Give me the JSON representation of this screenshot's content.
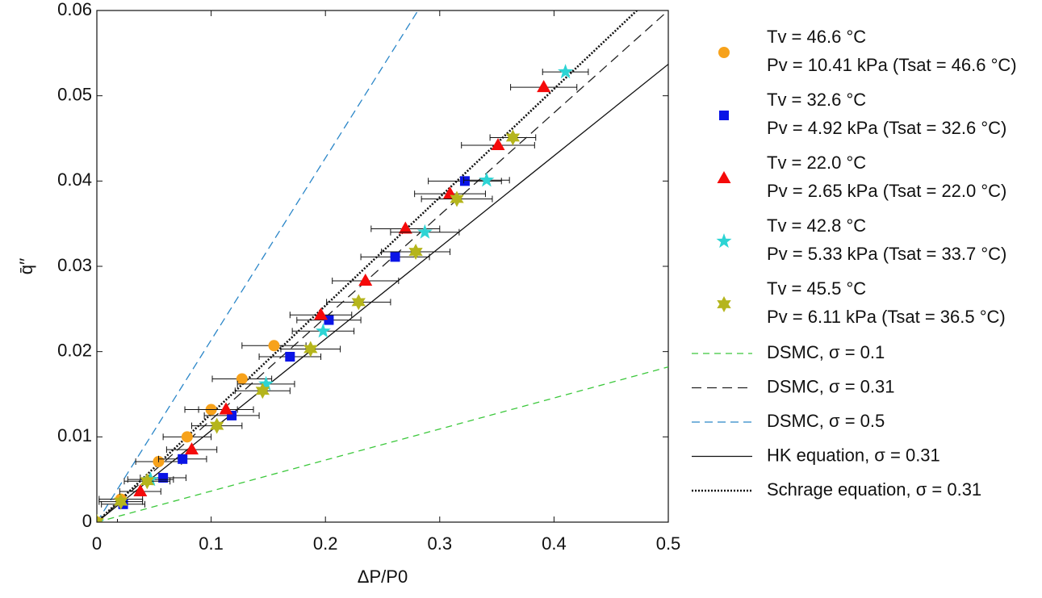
{
  "chart_data": {
    "type": "scatter",
    "xlabel": "ΔP/P0",
    "ylabel": "q̄′′",
    "xlim": [
      0,
      0.5
    ],
    "ylim": [
      0,
      0.06
    ],
    "xticks": [
      0,
      0.1,
      0.2,
      0.3,
      0.4,
      0.5
    ],
    "yticks": [
      0,
      0.01,
      0.02,
      0.03,
      0.04,
      0.05,
      0.06
    ],
    "series": [
      {
        "name": "Tv = 46.6 °C",
        "name2": "Pv = 10.41 kPa (Tsat = 46.6 °C)",
        "marker": "circle",
        "color": "#f7a21b",
        "x": [
          0,
          0.021,
          0.054,
          0.079,
          0.1,
          0.127,
          0.155
        ],
        "values": [
          0,
          0.0027,
          0.0071,
          0.01,
          0.0132,
          0.0168,
          0.0207
        ],
        "xerr": [
          0.018,
          0.019,
          0.02,
          0.021,
          0.023,
          0.026,
          0.028
        ]
      },
      {
        "name": "Tv = 32.6 °C",
        "name2": "Pv = 4.92 kPa (Tsat = 32.6 °C)",
        "marker": "square",
        "color": "#0a14e6",
        "x": [
          0.023,
          0.058,
          0.075,
          0.118,
          0.169,
          0.203,
          0.261,
          0.322
        ],
        "values": [
          0.0021,
          0.0052,
          0.0074,
          0.0125,
          0.0194,
          0.0237,
          0.0311,
          0.04
        ],
        "xerr": [
          0.019,
          0.02,
          0.021,
          0.024,
          0.027,
          0.028,
          0.03,
          0.032
        ]
      },
      {
        "name": "Tv = 22.0 °C",
        "name2": "Pv = 2.65 kPa (Tsat = 22.0 °C)",
        "marker": "triangle",
        "color": "#f50a0a",
        "x": [
          0,
          0.038,
          0.083,
          0.113,
          0.196,
          0.235,
          0.27,
          0.309,
          0.351,
          0.391
        ],
        "values": [
          0,
          0.0036,
          0.0085,
          0.0132,
          0.0243,
          0.0283,
          0.0344,
          0.0385,
          0.0442,
          0.051
        ],
        "xerr": [
          0.018,
          0.018,
          0.022,
          0.024,
          0.027,
          0.029,
          0.03,
          0.031,
          0.032,
          0.029
        ]
      },
      {
        "name": "Tv = 42.8 °C",
        "name2": "Pv = 5.33 kPa (Tsat = 33.7 °C)",
        "marker": "star5",
        "color": "#2dd4d4",
        "x": [
          0,
          0.047,
          0.148,
          0.198,
          0.287,
          0.341,
          0.41
        ],
        "values": [
          0,
          0.005,
          0.0162,
          0.0224,
          0.034,
          0.0401,
          0.0528
        ],
        "xerr": [
          0.018,
          0.02,
          0.025,
          0.027,
          0.03,
          0.02,
          0.02
        ]
      },
      {
        "name": "Tv = 45.5 °C",
        "name2": "Pv = 6.11 kPa (Tsat = 36.5 °C)",
        "marker": "star6",
        "color": "#b5b51c",
        "x": [
          0,
          0.021,
          0.044,
          0.105,
          0.145,
          0.187,
          0.229,
          0.279,
          0.315,
          0.364
        ],
        "values": [
          0,
          0.0024,
          0.0048,
          0.0113,
          0.0154,
          0.0203,
          0.0258,
          0.0317,
          0.0379,
          0.0451
        ],
        "xerr": [
          0.018,
          0.019,
          0.02,
          0.022,
          0.024,
          0.026,
          0.028,
          0.03,
          0.031,
          0.02
        ]
      }
    ],
    "lines": [
      {
        "name": "DSMC, σ = 0.1",
        "color": "#3cc83c",
        "dash": "8 6",
        "x": [
          0,
          0.5
        ],
        "values": [
          0,
          0.0182
        ]
      },
      {
        "name": "DSMC, σ = 0.31",
        "color": "#222",
        "dash": "12 7",
        "x": [
          0,
          0.5
        ],
        "values": [
          0,
          0.06
        ]
      },
      {
        "name": "DSMC, σ = 0.5",
        "color": "#2a86c8",
        "dash": "10 6",
        "x": [
          0,
          0.281
        ],
        "values": [
          0,
          0.06
        ]
      },
      {
        "name": "HK equation, σ = 0.31",
        "color": "#111",
        "dash": "none",
        "x": [
          0,
          0.5
        ],
        "values": [
          0,
          0.0537
        ]
      },
      {
        "name": "Schrage equation, σ = 0.31",
        "color": "#111",
        "dash": "2 2",
        "x": [
          0,
          0.4725
        ],
        "values": [
          0,
          0.06
        ]
      }
    ]
  }
}
